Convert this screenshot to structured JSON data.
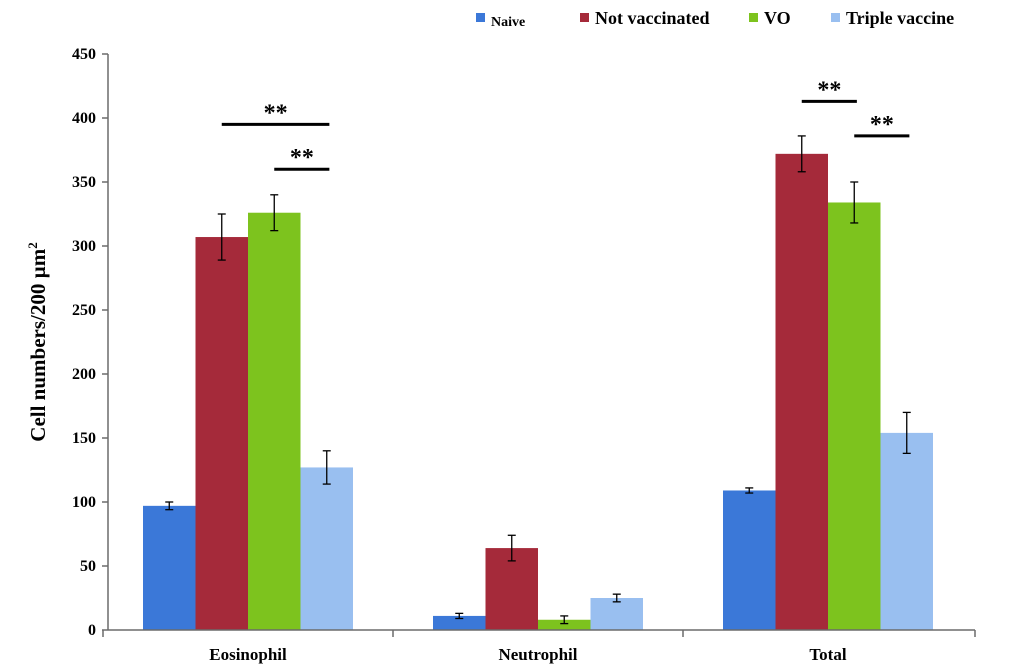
{
  "chart_data": {
    "type": "bar",
    "title": "",
    "xlabel": "",
    "ylabel": "Cell numbers/200 µm",
    "ylabel_superscript": "2",
    "ylim": [
      0,
      450
    ],
    "yticks": [
      0,
      50,
      100,
      150,
      200,
      250,
      300,
      350,
      400,
      450
    ],
    "grid": false,
    "legend_position": "top",
    "categories": [
      "Eosinophil",
      "Neutrophil",
      "Total"
    ],
    "series": [
      {
        "name": "Naive",
        "color": "#3b78d8",
        "values": [
          97,
          11,
          109
        ],
        "errors": [
          3,
          2,
          2
        ]
      },
      {
        "name": "Not vaccinated",
        "color": "#a52a3a",
        "values": [
          307,
          64,
          372
        ],
        "errors": [
          18,
          10,
          14
        ]
      },
      {
        "name": "VO",
        "color": "#7dc31e",
        "values": [
          326,
          8,
          334
        ],
        "errors": [
          14,
          3,
          16
        ]
      },
      {
        "name": "Triple vaccine",
        "color": "#99bff0",
        "values": [
          127,
          25,
          154
        ],
        "errors": [
          13,
          3,
          16
        ]
      }
    ],
    "annotations": [
      {
        "text": "**",
        "category": "Eosinophil",
        "from_series": 1,
        "to_series": 3,
        "y": 395
      },
      {
        "text": "**",
        "category": "Eosinophil",
        "from_series": 2,
        "to_series": 3,
        "y": 360
      },
      {
        "text": "**",
        "category": "Total",
        "from_series": 1,
        "to_series": 2,
        "y": 413
      },
      {
        "text": "**",
        "category": "Total",
        "from_series": 2,
        "to_series": 3,
        "y": 386
      }
    ]
  }
}
